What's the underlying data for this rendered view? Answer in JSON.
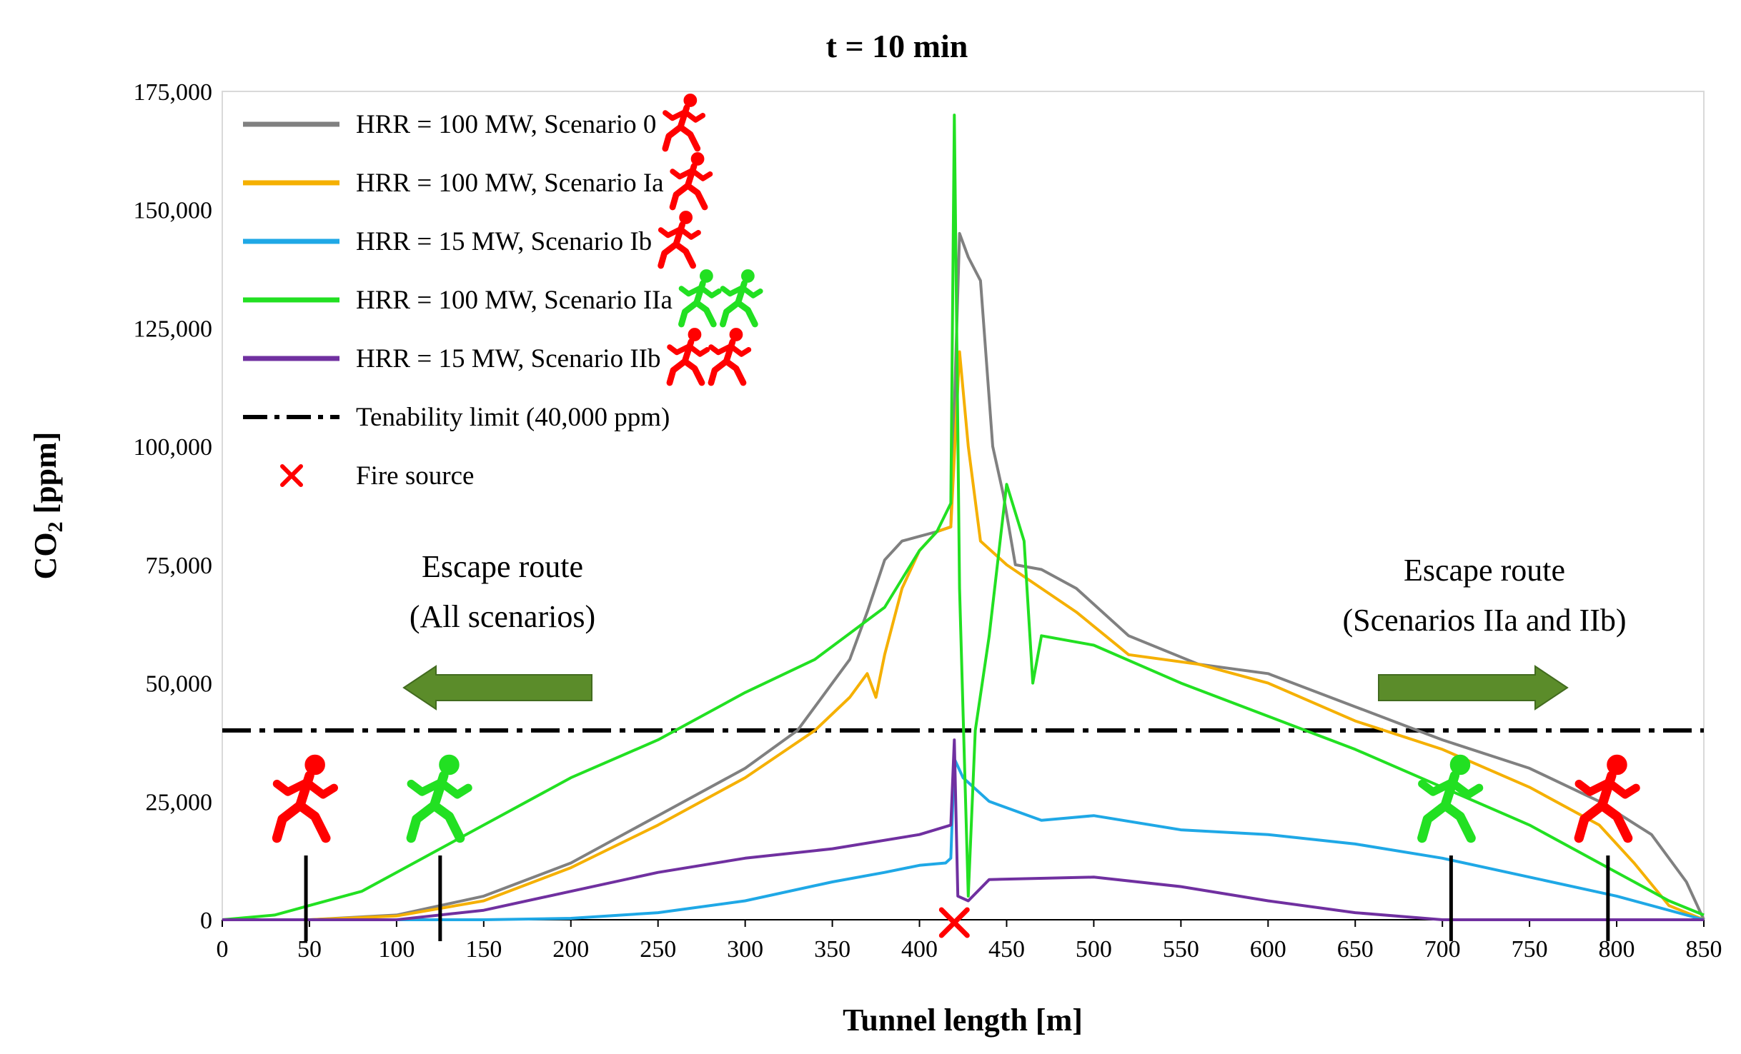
{
  "chart_data": {
    "type": "line",
    "title": "t = 10 min",
    "xlabel": "Tunnel length [m]",
    "ylabel_main": "CO",
    "ylabel_sub": "2",
    "ylabel_unit": " [ppm]",
    "xlim": [
      0,
      850
    ],
    "ylim": [
      0,
      175000
    ],
    "xticks": [
      0,
      50,
      100,
      150,
      200,
      250,
      300,
      350,
      400,
      450,
      500,
      550,
      600,
      650,
      700,
      750,
      800,
      850
    ],
    "yticks": [
      0,
      25000,
      50000,
      75000,
      100000,
      125000,
      150000,
      175000
    ],
    "ytick_labels": [
      "0",
      "25,000",
      "50,000",
      "75,000",
      "100,000",
      "125,000",
      "150,000",
      "175,000"
    ],
    "series": [
      {
        "name": "HRR = 100 MW, Scenario 0",
        "color": "#808080",
        "marker": "red-runner",
        "points": [
          [
            0,
            0
          ],
          [
            50,
            0
          ],
          [
            100,
            1000
          ],
          [
            150,
            5000
          ],
          [
            200,
            12000
          ],
          [
            250,
            22000
          ],
          [
            300,
            32000
          ],
          [
            330,
            40000
          ],
          [
            350,
            50000
          ],
          [
            360,
            55000
          ],
          [
            370,
            65000
          ],
          [
            380,
            76000
          ],
          [
            390,
            80000
          ],
          [
            400,
            81000
          ],
          [
            410,
            82000
          ],
          [
            418,
            83000
          ],
          [
            423,
            145000
          ],
          [
            428,
            140000
          ],
          [
            435,
            135000
          ],
          [
            442,
            100000
          ],
          [
            448,
            90000
          ],
          [
            455,
            75000
          ],
          [
            470,
            74000
          ],
          [
            490,
            70000
          ],
          [
            520,
            60000
          ],
          [
            560,
            54000
          ],
          [
            600,
            52000
          ],
          [
            650,
            45000
          ],
          [
            700,
            38000
          ],
          [
            750,
            32000
          ],
          [
            790,
            25000
          ],
          [
            820,
            18000
          ],
          [
            840,
            8000
          ],
          [
            850,
            0
          ]
        ]
      },
      {
        "name": "HRR = 100 MW, Scenario Ia",
        "color": "#f5b000",
        "marker": "red-runner",
        "points": [
          [
            0,
            0
          ],
          [
            50,
            0
          ],
          [
            100,
            800
          ],
          [
            150,
            4000
          ],
          [
            200,
            11000
          ],
          [
            250,
            20000
          ],
          [
            300,
            30000
          ],
          [
            340,
            40000
          ],
          [
            360,
            47000
          ],
          [
            370,
            52000
          ],
          [
            375,
            47000
          ],
          [
            380,
            56000
          ],
          [
            390,
            70000
          ],
          [
            400,
            78000
          ],
          [
            410,
            82000
          ],
          [
            418,
            83000
          ],
          [
            423,
            120000
          ],
          [
            428,
            100000
          ],
          [
            435,
            80000
          ],
          [
            450,
            75000
          ],
          [
            470,
            70000
          ],
          [
            490,
            65000
          ],
          [
            520,
            56000
          ],
          [
            560,
            54000
          ],
          [
            600,
            50000
          ],
          [
            650,
            42000
          ],
          [
            700,
            36000
          ],
          [
            750,
            28000
          ],
          [
            790,
            20000
          ],
          [
            810,
            12000
          ],
          [
            830,
            3000
          ],
          [
            850,
            0
          ]
        ]
      },
      {
        "name": "HRR = 15 MW, Scenario Ib",
        "color": "#1fa8e6",
        "marker": "red-runner",
        "points": [
          [
            0,
            0
          ],
          [
            100,
            0
          ],
          [
            150,
            0
          ],
          [
            200,
            300
          ],
          [
            250,
            1500
          ],
          [
            300,
            4000
          ],
          [
            350,
            8000
          ],
          [
            380,
            10000
          ],
          [
            400,
            11500
          ],
          [
            415,
            12000
          ],
          [
            418,
            13000
          ],
          [
            420,
            34000
          ],
          [
            425,
            30000
          ],
          [
            440,
            25000
          ],
          [
            470,
            21000
          ],
          [
            500,
            22000
          ],
          [
            550,
            19000
          ],
          [
            600,
            18000
          ],
          [
            650,
            16000
          ],
          [
            700,
            13000
          ],
          [
            750,
            9000
          ],
          [
            800,
            5000
          ],
          [
            850,
            0
          ]
        ]
      },
      {
        "name": "HRR = 100 MW, Scenario IIa",
        "color": "#22e022",
        "marker": "green-runners",
        "points": [
          [
            0,
            0
          ],
          [
            30,
            1000
          ],
          [
            50,
            3000
          ],
          [
            80,
            6000
          ],
          [
            100,
            10000
          ],
          [
            150,
            20000
          ],
          [
            200,
            30000
          ],
          [
            250,
            38000
          ],
          [
            300,
            48000
          ],
          [
            340,
            55000
          ],
          [
            380,
            66000
          ],
          [
            400,
            78000
          ],
          [
            410,
            82000
          ],
          [
            418,
            88000
          ],
          [
            420,
            170000
          ],
          [
            423,
            70000
          ],
          [
            428,
            5000
          ],
          [
            432,
            40000
          ],
          [
            440,
            60000
          ],
          [
            450,
            92000
          ],
          [
            460,
            80000
          ],
          [
            465,
            50000
          ],
          [
            470,
            60000
          ],
          [
            500,
            58000
          ],
          [
            550,
            50000
          ],
          [
            600,
            43000
          ],
          [
            650,
            36000
          ],
          [
            700,
            28000
          ],
          [
            750,
            20000
          ],
          [
            800,
            10000
          ],
          [
            830,
            4000
          ],
          [
            850,
            1000
          ]
        ]
      },
      {
        "name": "HRR = 15 MW, Scenario IIb",
        "color": "#7030a0",
        "marker": "red-runners",
        "points": [
          [
            0,
            0
          ],
          [
            100,
            0
          ],
          [
            150,
            2000
          ],
          [
            200,
            6000
          ],
          [
            250,
            10000
          ],
          [
            300,
            13000
          ],
          [
            350,
            15000
          ],
          [
            400,
            18000
          ],
          [
            418,
            20000
          ],
          [
            420,
            38000
          ],
          [
            422,
            5000
          ],
          [
            428,
            4000
          ],
          [
            440,
            8500
          ],
          [
            500,
            9000
          ],
          [
            550,
            7000
          ],
          [
            600,
            4000
          ],
          [
            650,
            1500
          ],
          [
            700,
            0
          ],
          [
            850,
            0
          ]
        ]
      }
    ],
    "tenability_limit": {
      "label": "Tenability limit (40,000 ppm)",
      "value": 40000,
      "color": "#000000"
    },
    "fire_source": {
      "label": "Fire source",
      "x": 420,
      "color": "#ff0000"
    },
    "escape_left": {
      "line1": "Escape route",
      "line2": "(All scenarios)",
      "direction": "left",
      "color": "#5b8c2a"
    },
    "escape_right": {
      "line1": "Escape route",
      "line2": "(Scenarios IIa and IIb)",
      "direction": "right",
      "color": "#5b8c2a"
    },
    "person_markers": [
      {
        "x": 48,
        "color": "#ff0000"
      },
      {
        "x": 125,
        "color": "#22e022"
      },
      {
        "x": 705,
        "color": "#22e022"
      },
      {
        "x": 795,
        "color": "#ff0000"
      }
    ]
  }
}
